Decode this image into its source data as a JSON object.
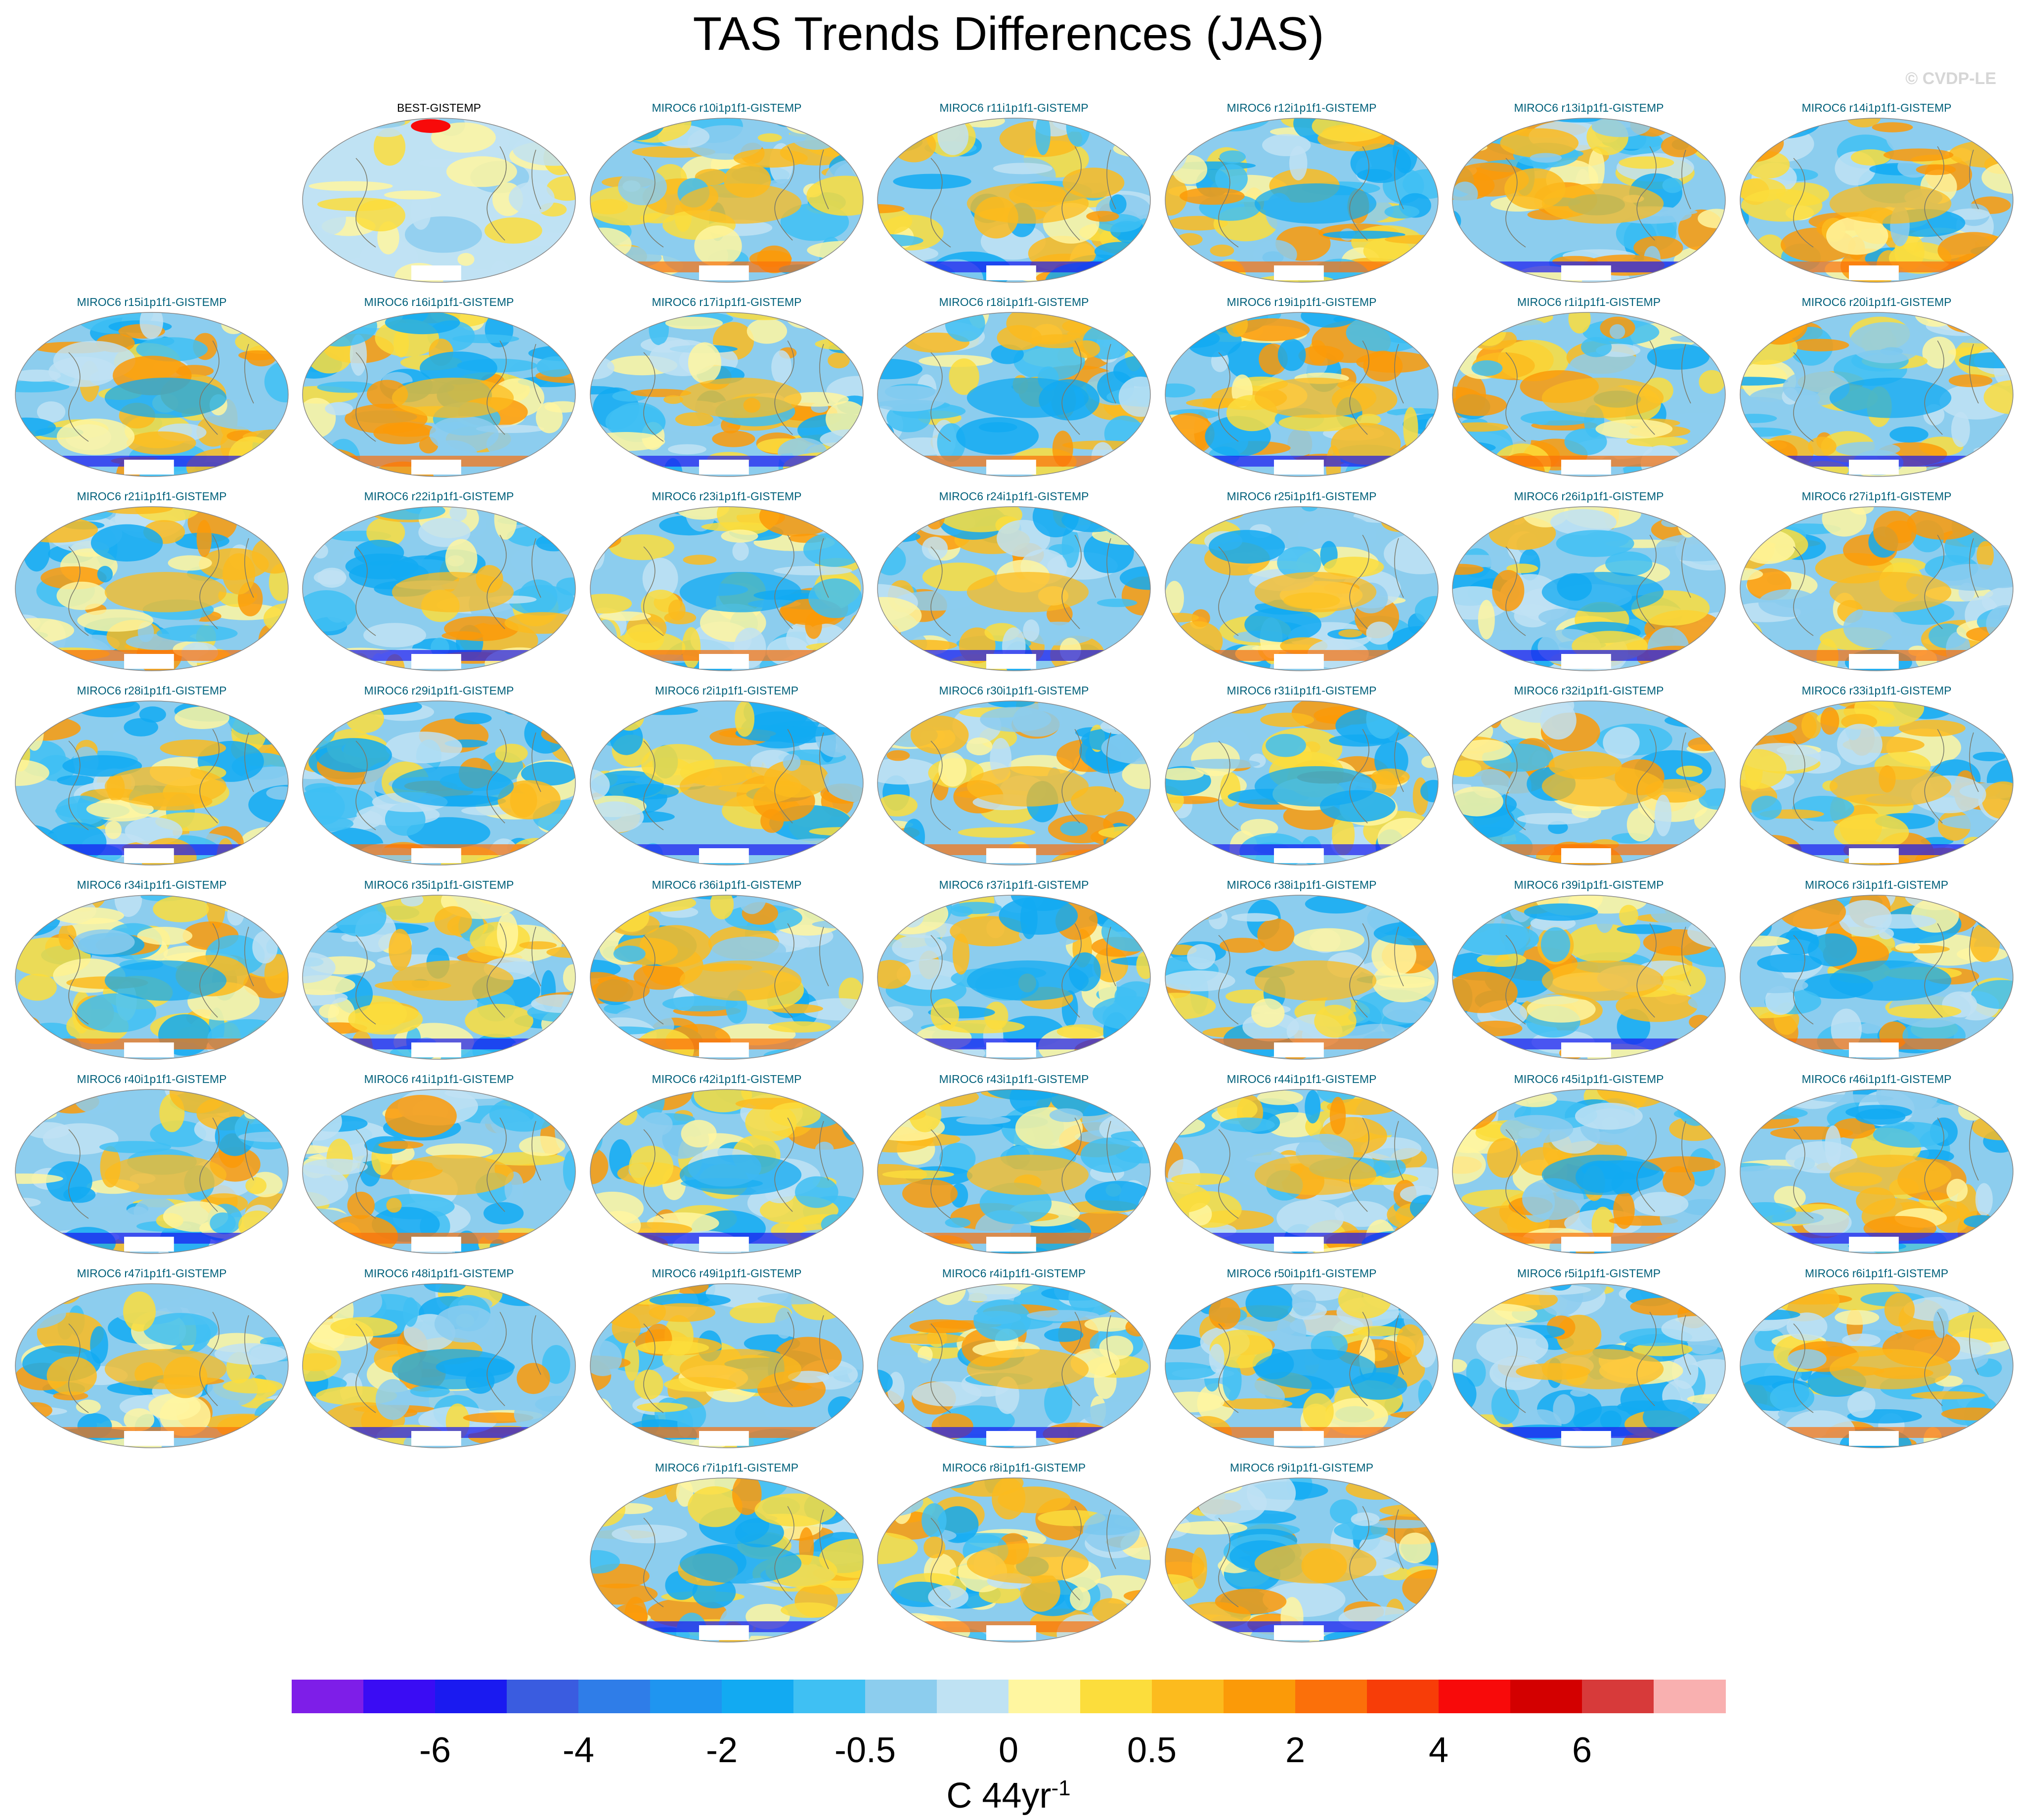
{
  "title": "TAS Trends Differences (JAS)",
  "watermark": "© CVDP-LE",
  "units": {
    "base": "C 44yr",
    "exponent": "-1"
  },
  "colorbar": {
    "colors": [
      "#7e1ee8",
      "#3a0cf4",
      "#1a1af0",
      "#3a5ce0",
      "#2f7de8",
      "#1f95f0",
      "#12aaf2",
      "#3fc0f3",
      "#8ccdee",
      "#bfe2f3",
      "#fff6a0",
      "#fcdd3c",
      "#fcbb1e",
      "#fb9a08",
      "#fb700a",
      "#f73d08",
      "#f80a0a",
      "#d30000",
      "#d73a3a",
      "#f9b0b0"
    ],
    "labels": [
      "-6",
      "-4",
      "-2",
      "-0.5",
      "0",
      "0.5",
      "2",
      "4",
      "6"
    ]
  },
  "panels": [
    {
      "title": "BEST-GISTEMP",
      "obs": true
    },
    {
      "title": "MIROC6 r10i1p1f1-GISTEMP"
    },
    {
      "title": "MIROC6 r11i1p1f1-GISTEMP"
    },
    {
      "title": "MIROC6 r12i1p1f1-GISTEMP"
    },
    {
      "title": "MIROC6 r13i1p1f1-GISTEMP"
    },
    {
      "title": "MIROC6 r14i1p1f1-GISTEMP"
    },
    {
      "title": "MIROC6 r15i1p1f1-GISTEMP"
    },
    {
      "title": "MIROC6 r16i1p1f1-GISTEMP"
    },
    {
      "title": "MIROC6 r17i1p1f1-GISTEMP"
    },
    {
      "title": "MIROC6 r18i1p1f1-GISTEMP"
    },
    {
      "title": "MIROC6 r19i1p1f1-GISTEMP"
    },
    {
      "title": "MIROC6 r1i1p1f1-GISTEMP"
    },
    {
      "title": "MIROC6 r20i1p1f1-GISTEMP"
    },
    {
      "title": "MIROC6 r21i1p1f1-GISTEMP"
    },
    {
      "title": "MIROC6 r22i1p1f1-GISTEMP"
    },
    {
      "title": "MIROC6 r23i1p1f1-GISTEMP"
    },
    {
      "title": "MIROC6 r24i1p1f1-GISTEMP"
    },
    {
      "title": "MIROC6 r25i1p1f1-GISTEMP"
    },
    {
      "title": "MIROC6 r26i1p1f1-GISTEMP"
    },
    {
      "title": "MIROC6 r27i1p1f1-GISTEMP"
    },
    {
      "title": "MIROC6 r28i1p1f1-GISTEMP"
    },
    {
      "title": "MIROC6 r29i1p1f1-GISTEMP"
    },
    {
      "title": "MIROC6 r2i1p1f1-GISTEMP"
    },
    {
      "title": "MIROC6 r30i1p1f1-GISTEMP"
    },
    {
      "title": "MIROC6 r31i1p1f1-GISTEMP"
    },
    {
      "title": "MIROC6 r32i1p1f1-GISTEMP"
    },
    {
      "title": "MIROC6 r33i1p1f1-GISTEMP"
    },
    {
      "title": "MIROC6 r34i1p1f1-GISTEMP"
    },
    {
      "title": "MIROC6 r35i1p1f1-GISTEMP"
    },
    {
      "title": "MIROC6 r36i1p1f1-GISTEMP"
    },
    {
      "title": "MIROC6 r37i1p1f1-GISTEMP"
    },
    {
      "title": "MIROC6 r38i1p1f1-GISTEMP"
    },
    {
      "title": "MIROC6 r39i1p1f1-GISTEMP"
    },
    {
      "title": "MIROC6 r3i1p1f1-GISTEMP"
    },
    {
      "title": "MIROC6 r40i1p1f1-GISTEMP"
    },
    {
      "title": "MIROC6 r41i1p1f1-GISTEMP"
    },
    {
      "title": "MIROC6 r42i1p1f1-GISTEMP"
    },
    {
      "title": "MIROC6 r43i1p1f1-GISTEMP"
    },
    {
      "title": "MIROC6 r44i1p1f1-GISTEMP"
    },
    {
      "title": "MIROC6 r45i1p1f1-GISTEMP"
    },
    {
      "title": "MIROC6 r46i1p1f1-GISTEMP"
    },
    {
      "title": "MIROC6 r47i1p1f1-GISTEMP"
    },
    {
      "title": "MIROC6 r48i1p1f1-GISTEMP"
    },
    {
      "title": "MIROC6 r49i1p1f1-GISTEMP"
    },
    {
      "title": "MIROC6 r4i1p1f1-GISTEMP"
    },
    {
      "title": "MIROC6 r50i1p1f1-GISTEMP"
    },
    {
      "title": "MIROC6 r5i1p1f1-GISTEMP"
    },
    {
      "title": "MIROC6 r6i1p1f1-GISTEMP"
    },
    {
      "title": "MIROC6 r7i1p1f1-GISTEMP"
    },
    {
      "title": "MIROC6 r8i1p1f1-GISTEMP"
    },
    {
      "title": "MIROC6 r9i1p1f1-GISTEMP"
    }
  ]
}
